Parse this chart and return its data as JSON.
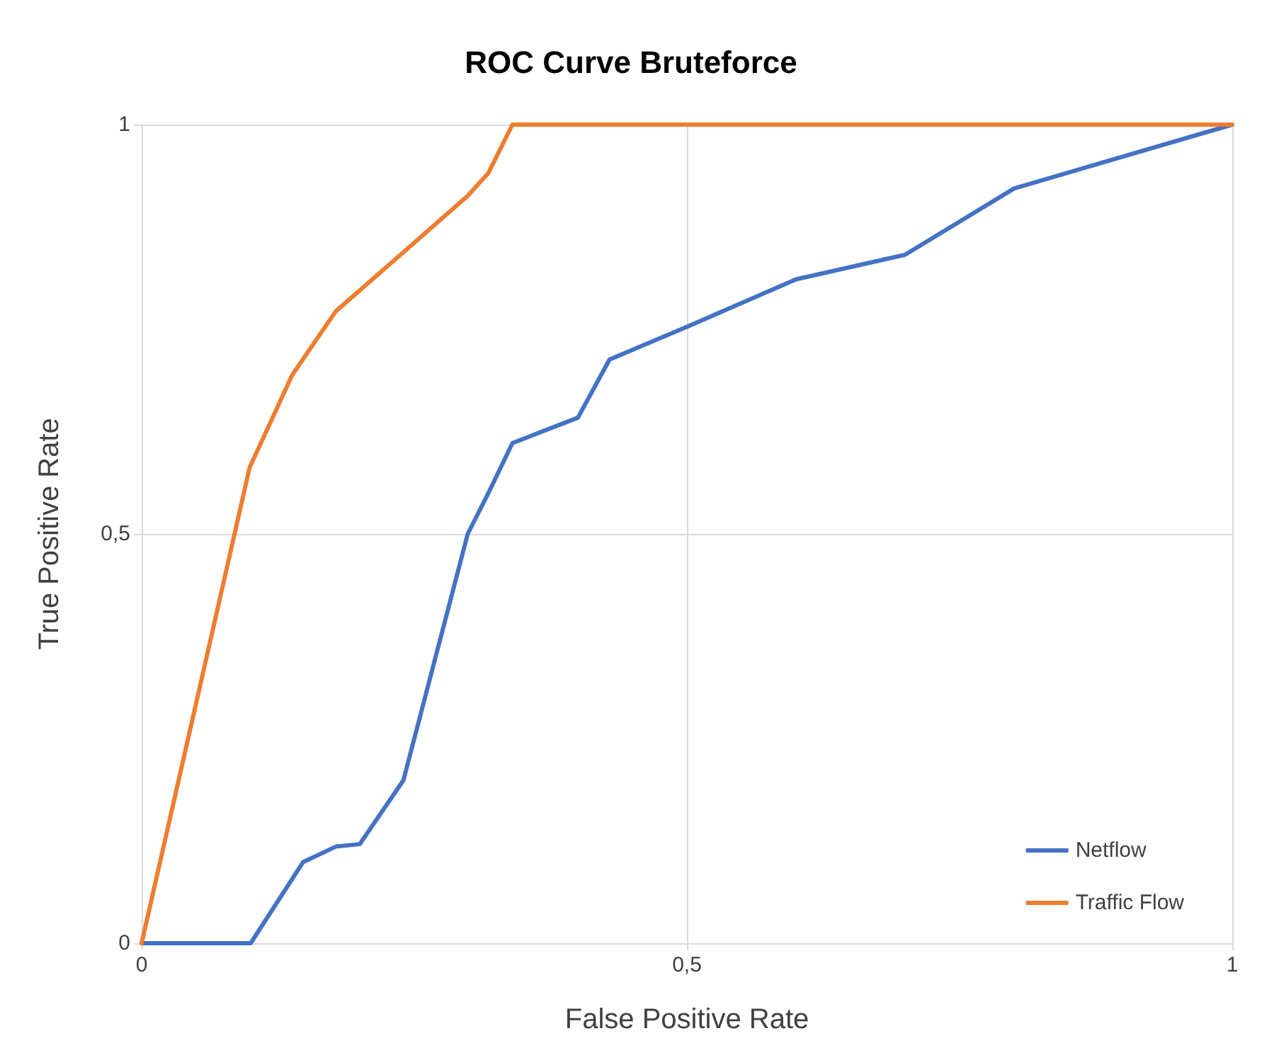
{
  "chart_data": {
    "type": "line",
    "title": "ROC Curve Bruteforce",
    "xlabel": "False Positive Rate",
    "ylabel": "True Positive Rate",
    "xlim": [
      0,
      1
    ],
    "ylim": [
      0,
      1
    ],
    "xticks": [
      0,
      {
        "value": 0.5,
        "label": "0,5"
      },
      1
    ],
    "yticks": [
      0,
      {
        "value": 0.5,
        "label": "0,5"
      },
      1
    ],
    "grid": true,
    "legend": "bottom right",
    "marker": "none",
    "line_style": "solid",
    "series": [
      {
        "name": "Netflow",
        "color": "#4472c4",
        "x": [
          0,
          0.1,
          0.148,
          0.178,
          0.2,
          0.24,
          0.299,
          0.318,
          0.34,
          0.4,
          0.429,
          0.5,
          0.6,
          0.7,
          0.8,
          1
        ],
        "values": [
          0,
          0,
          0.099,
          0.118,
          0.121,
          0.199,
          0.5,
          0.55,
          0.611,
          0.642,
          0.713,
          0.753,
          0.811,
          0.841,
          0.922,
          1
        ]
      },
      {
        "name": "Traffic Flow",
        "color": "#ed7d31",
        "x": [
          0,
          0.099,
          0.138,
          0.178,
          0.197,
          0.24,
          0.299,
          0.318,
          0.34,
          1
        ],
        "values": [
          0,
          0.581,
          0.694,
          0.772,
          0.794,
          0.844,
          0.913,
          0.941,
          1,
          1
        ]
      }
    ]
  }
}
